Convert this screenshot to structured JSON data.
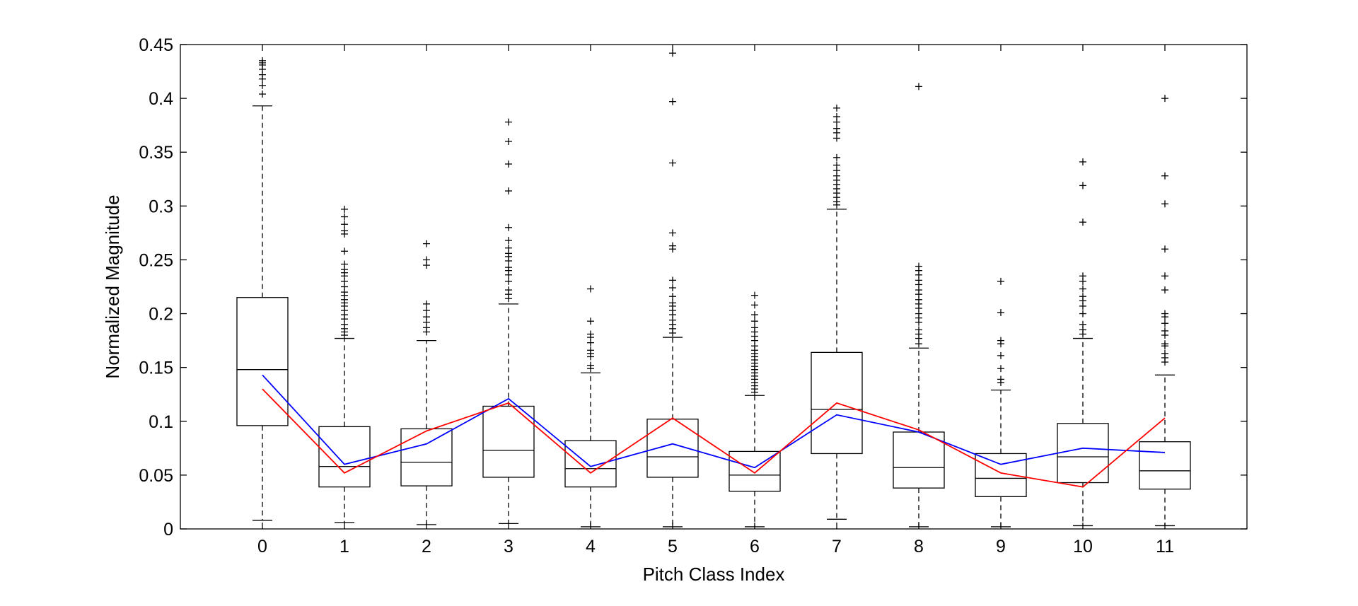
{
  "chart_data": {
    "type": "boxplot",
    "xlabel": "Pitch Class Index",
    "ylabel": "Normalized Magnitude",
    "ylim": [
      0,
      0.45
    ],
    "xlim": [
      -1,
      12
    ],
    "yticks": [
      0,
      0.05,
      0.1,
      0.15,
      0.2,
      0.25,
      0.3,
      0.35,
      0.4,
      0.45
    ],
    "ytick_labels": [
      "0",
      "0.05",
      "0.1",
      "0.15",
      "0.2",
      "0.25",
      "0.3",
      "0.35",
      "0.4",
      "0.45"
    ],
    "categories": [
      "0",
      "1",
      "2",
      "3",
      "4",
      "5",
      "6",
      "7",
      "8",
      "9",
      "10",
      "11"
    ],
    "boxes": [
      {
        "category": "0",
        "whisker_low": 0.008,
        "q1": 0.096,
        "median": 0.148,
        "q3": 0.215,
        "whisker_high": 0.393,
        "outliers": [
          0.404,
          0.412,
          0.418,
          0.422,
          0.427,
          0.431,
          0.433,
          0.435
        ]
      },
      {
        "category": "1",
        "whisker_low": 0.006,
        "q1": 0.039,
        "median": 0.058,
        "q3": 0.095,
        "whisker_high": 0.177,
        "outliers": [
          0.18,
          0.183,
          0.186,
          0.19,
          0.195,
          0.199,
          0.203,
          0.207,
          0.21,
          0.213,
          0.217,
          0.22,
          0.225,
          0.23,
          0.235,
          0.238,
          0.241,
          0.246,
          0.258,
          0.274,
          0.277,
          0.283,
          0.29,
          0.297
        ]
      },
      {
        "category": "2",
        "whisker_low": 0.004,
        "q1": 0.04,
        "median": 0.062,
        "q3": 0.093,
        "whisker_high": 0.175,
        "outliers": [
          0.183,
          0.187,
          0.192,
          0.197,
          0.203,
          0.209,
          0.245,
          0.25,
          0.265
        ]
      },
      {
        "category": "3",
        "whisker_low": 0.005,
        "q1": 0.048,
        "median": 0.073,
        "q3": 0.114,
        "whisker_high": 0.209,
        "outliers": [
          0.214,
          0.218,
          0.222,
          0.23,
          0.236,
          0.24,
          0.243,
          0.249,
          0.253,
          0.256,
          0.261,
          0.268,
          0.28,
          0.314,
          0.339,
          0.36,
          0.378
        ]
      },
      {
        "category": "4",
        "whisker_low": 0.002,
        "q1": 0.039,
        "median": 0.056,
        "q3": 0.082,
        "whisker_high": 0.145,
        "outliers": [
          0.149,
          0.152,
          0.16,
          0.163,
          0.166,
          0.173,
          0.178,
          0.181,
          0.193,
          0.223
        ]
      },
      {
        "category": "5",
        "whisker_low": 0.002,
        "q1": 0.048,
        "median": 0.067,
        "q3": 0.102,
        "whisker_high": 0.178,
        "outliers": [
          0.182,
          0.186,
          0.19,
          0.194,
          0.199,
          0.203,
          0.207,
          0.21,
          0.216,
          0.224,
          0.231,
          0.26,
          0.263,
          0.275,
          0.34,
          0.397,
          0.442
        ]
      },
      {
        "category": "6",
        "whisker_low": 0.002,
        "q1": 0.035,
        "median": 0.05,
        "q3": 0.072,
        "whisker_high": 0.124,
        "outliers": [
          0.127,
          0.13,
          0.133,
          0.136,
          0.139,
          0.142,
          0.145,
          0.148,
          0.151,
          0.154,
          0.157,
          0.16,
          0.163,
          0.166,
          0.17,
          0.175,
          0.179,
          0.183,
          0.187,
          0.193,
          0.199,
          0.208,
          0.217
        ]
      },
      {
        "category": "7",
        "whisker_low": 0.009,
        "q1": 0.07,
        "median": 0.111,
        "q3": 0.164,
        "whisker_high": 0.297,
        "outliers": [
          0.301,
          0.304,
          0.308,
          0.312,
          0.316,
          0.32,
          0.324,
          0.328,
          0.333,
          0.338,
          0.345,
          0.363,
          0.368,
          0.372,
          0.378,
          0.383,
          0.391
        ]
      },
      {
        "category": "8",
        "whisker_low": 0.002,
        "q1": 0.038,
        "median": 0.057,
        "q3": 0.09,
        "whisker_high": 0.168,
        "outliers": [
          0.172,
          0.177,
          0.181,
          0.185,
          0.192,
          0.196,
          0.2,
          0.205,
          0.209,
          0.213,
          0.218,
          0.222,
          0.227,
          0.231,
          0.236,
          0.24,
          0.244,
          0.411
        ]
      },
      {
        "category": "9",
        "whisker_low": 0.002,
        "q1": 0.03,
        "median": 0.047,
        "q3": 0.07,
        "whisker_high": 0.129,
        "outliers": [
          0.136,
          0.139,
          0.149,
          0.161,
          0.172,
          0.175,
          0.201,
          0.23
        ]
      },
      {
        "category": "10",
        "whisker_low": 0.003,
        "q1": 0.043,
        "median": 0.067,
        "q3": 0.098,
        "whisker_high": 0.177,
        "outliers": [
          0.181,
          0.185,
          0.19,
          0.2,
          0.207,
          0.212,
          0.216,
          0.223,
          0.23,
          0.235,
          0.285,
          0.319,
          0.341
        ]
      },
      {
        "category": "11",
        "whisker_low": 0.003,
        "q1": 0.037,
        "median": 0.054,
        "q3": 0.081,
        "whisker_high": 0.143,
        "outliers": [
          0.155,
          0.159,
          0.163,
          0.17,
          0.172,
          0.18,
          0.184,
          0.191,
          0.197,
          0.2,
          0.222,
          0.235,
          0.26,
          0.302,
          0.328,
          0.4
        ]
      }
    ],
    "series": [
      {
        "color": "#0000ff",
        "values": [
          0.143,
          0.06,
          0.079,
          0.121,
          0.058,
          0.079,
          0.057,
          0.106,
          0.09,
          0.06,
          0.075,
          0.071
        ]
      },
      {
        "color": "#ff0000",
        "values": [
          0.13,
          0.052,
          0.091,
          0.117,
          0.052,
          0.103,
          0.052,
          0.117,
          0.092,
          0.052,
          0.039,
          0.103
        ]
      }
    ],
    "grid": false,
    "legend": "none"
  }
}
